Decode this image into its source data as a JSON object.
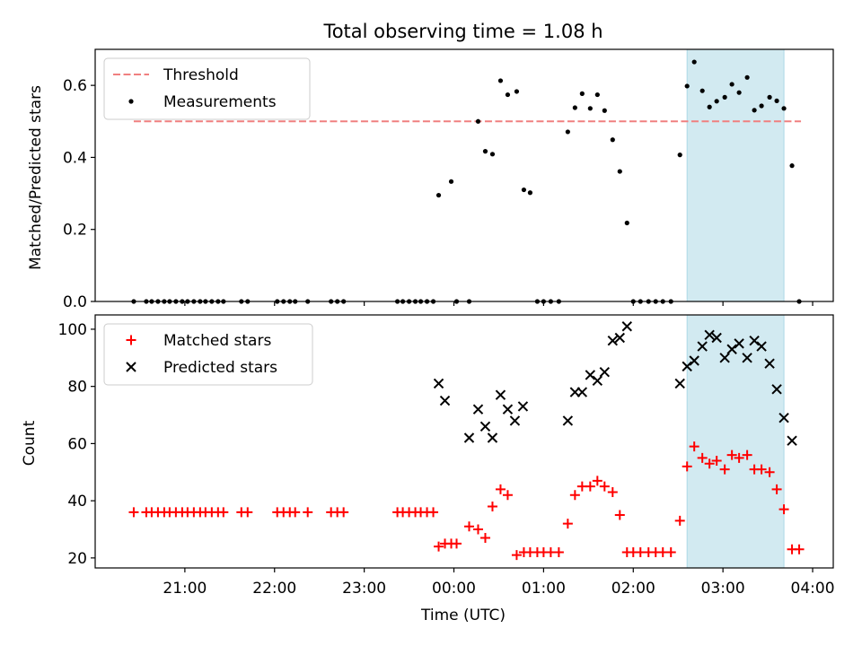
{
  "chart_data": [
    {
      "type": "scatter",
      "title": "Total observing time = 1.08 h",
      "ylabel": "Matched/Predicted stars",
      "xlabel": "",
      "ylim": [
        0,
        0.7
      ],
      "yticks": [
        0.0,
        0.2,
        0.4,
        0.6
      ],
      "ytick_labels": [
        "0.0",
        "0.2",
        "0.4",
        "0.6"
      ],
      "x_unit": "hours after 00:00 UTC",
      "xlim": [
        -4.0,
        4.23
      ],
      "highlight_span": [
        2.6,
        3.68
      ],
      "highlight_color": "#add8e6",
      "legend_position": "upper left",
      "threshold": {
        "name": "Threshold",
        "value": 0.5,
        "x_range": [
          -3.57,
          3.87
        ],
        "color": "#f08080"
      },
      "series": [
        {
          "name": "Measurements",
          "color": "#000000",
          "marker": "dot",
          "x": [
            -3.57,
            -3.43,
            -3.37,
            -3.3,
            -3.23,
            -3.17,
            -3.1,
            -3.03,
            -2.97,
            -2.9,
            -2.83,
            -2.77,
            -2.7,
            -2.63,
            -2.57,
            -2.37,
            -2.3,
            -1.97,
            -1.9,
            -1.83,
            -1.77,
            -1.63,
            -1.37,
            -1.3,
            -1.23,
            -0.63,
            -0.57,
            -0.5,
            -0.43,
            -0.37,
            -0.3,
            -0.23,
            -0.17,
            -0.03,
            0.03,
            0.17,
            0.27,
            0.35,
            0.43,
            0.52,
            0.6,
            0.7,
            0.78,
            0.85,
            0.93,
            1.0,
            1.08,
            1.17,
            1.27,
            1.35,
            1.43,
            1.52,
            1.6,
            1.68,
            1.77,
            1.85,
            1.93,
            2.0,
            2.08,
            2.17,
            2.25,
            2.33,
            2.42,
            2.52,
            2.6,
            2.68,
            2.77,
            2.85,
            2.93,
            3.02,
            3.1,
            3.18,
            3.27,
            3.35,
            3.43,
            3.52,
            3.6,
            3.68,
            3.77,
            3.85
          ],
          "y": [
            0,
            0,
            0,
            0,
            0,
            0,
            0,
            0,
            0,
            0,
            0,
            0,
            0,
            0,
            0,
            0,
            0,
            0,
            0,
            0,
            0,
            0,
            0,
            0,
            0,
            0,
            0,
            0,
            0,
            0,
            0,
            0,
            0.295,
            0.333,
            0,
            0,
            0.5,
            0.417,
            0.409,
            0.613,
            0.574,
            0.583,
            0.31,
            0.302,
            0,
            0,
            0,
            0,
            0.471,
            0.538,
            0.577,
            0.536,
            0.574,
            0.53,
            0.449,
            0.361,
            0.218,
            0,
            0,
            0,
            0,
            0,
            0,
            0.407,
            0.598,
            0.665,
            0.585,
            0.54,
            0.556,
            0.567,
            0.603,
            0.58,
            0.622,
            0.531,
            0.543,
            0.567,
            0.557,
            0.536,
            0.377,
            0
          ]
        }
      ]
    },
    {
      "type": "scatter",
      "title": "",
      "xlabel": "Time (UTC)",
      "ylabel": "Count",
      "ylim": [
        16.5,
        105
      ],
      "yticks": [
        20,
        40,
        60,
        80,
        100
      ],
      "ytick_labels": [
        "20",
        "40",
        "60",
        "80",
        "100"
      ],
      "x_unit": "hours after 00:00 UTC",
      "xlim": [
        -4.0,
        4.23
      ],
      "xticks": [
        -3,
        -2,
        -1,
        0,
        1,
        2,
        3,
        4
      ],
      "xtick_labels": [
        "21:00",
        "22:00",
        "23:00",
        "00:00",
        "01:00",
        "02:00",
        "03:00",
        "04:00"
      ],
      "highlight_span": [
        2.6,
        3.68
      ],
      "highlight_color": "#add8e6",
      "legend_position": "upper left",
      "series": [
        {
          "name": "Matched stars",
          "color": "#ff0000",
          "marker": "plus",
          "x": [
            -3.57,
            -3.43,
            -3.37,
            -3.3,
            -3.23,
            -3.17,
            -3.1,
            -3.03,
            -2.97,
            -2.9,
            -2.83,
            -2.77,
            -2.7,
            -2.63,
            -2.57,
            -2.37,
            -2.3,
            -1.97,
            -1.9,
            -1.83,
            -1.77,
            -1.63,
            -1.37,
            -1.3,
            -1.23,
            -0.63,
            -0.57,
            -0.5,
            -0.43,
            -0.37,
            -0.3,
            -0.23,
            -0.17,
            -0.1,
            -0.03,
            0.03,
            0.17,
            0.27,
            0.35,
            0.43,
            0.52,
            0.6,
            0.7,
            0.78,
            0.85,
            0.93,
            1.0,
            1.08,
            1.17,
            1.27,
            1.35,
            1.43,
            1.52,
            1.6,
            1.68,
            1.77,
            1.85,
            1.93,
            2.0,
            2.08,
            2.17,
            2.25,
            2.33,
            2.42,
            2.52,
            2.6,
            2.68,
            2.77,
            2.85,
            2.93,
            3.02,
            3.1,
            3.18,
            3.27,
            3.35,
            3.43,
            3.52,
            3.6,
            3.68,
            3.77,
            3.85
          ],
          "y": [
            36,
            36,
            36,
            36,
            36,
            36,
            36,
            36,
            36,
            36,
            36,
            36,
            36,
            36,
            36,
            36,
            36,
            36,
            36,
            36,
            36,
            36,
            36,
            36,
            36,
            36,
            36,
            36,
            36,
            36,
            36,
            36,
            24,
            25,
            25,
            25,
            31,
            30,
            27,
            38,
            44,
            42,
            21,
            22,
            22,
            22,
            22,
            22,
            22,
            32,
            42,
            45,
            45,
            47,
            45,
            43,
            35,
            22,
            22,
            22,
            22,
            22,
            22,
            22,
            33,
            52,
            59,
            55,
            53,
            54,
            51,
            56,
            55,
            56,
            51,
            51,
            50,
            44,
            37,
            23,
            23
          ]
        },
        {
          "name": "Predicted stars",
          "color": "#000000",
          "marker": "x",
          "x": [
            -0.17,
            -0.1,
            0.17,
            0.27,
            0.35,
            0.43,
            0.52,
            0.6,
            0.68,
            0.77,
            1.27,
            1.35,
            1.43,
            1.52,
            1.6,
            1.68,
            1.77,
            1.85,
            1.93,
            2.52,
            2.6,
            2.68,
            2.77,
            2.85,
            2.93,
            3.02,
            3.1,
            3.18,
            3.27,
            3.35,
            3.43,
            3.52,
            3.6,
            3.68,
            3.77
          ],
          "y": [
            81,
            75,
            62,
            72,
            66,
            62,
            77,
            72,
            68,
            73,
            68,
            78,
            78,
            84,
            82,
            85,
            96,
            97,
            101,
            81,
            87,
            89,
            94,
            98,
            97,
            90,
            93,
            95,
            90,
            96,
            94,
            88,
            79,
            69,
            61
          ]
        }
      ]
    }
  ]
}
